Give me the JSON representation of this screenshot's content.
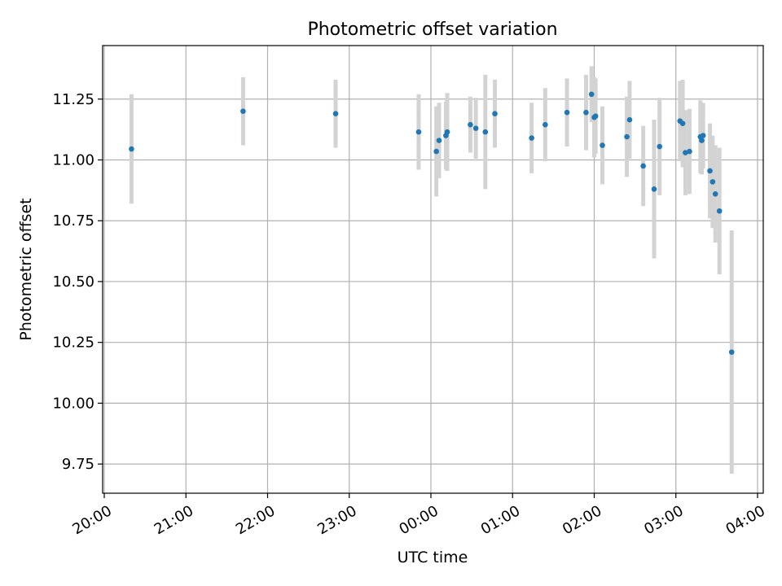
{
  "chart_data": {
    "type": "scatter",
    "title": "Photometric offset variation",
    "xlabel": "UTC time",
    "ylabel": "Photometric offset",
    "x_ticks": [
      "20:00",
      "21:00",
      "22:00",
      "23:00",
      "00:00",
      "01:00",
      "02:00",
      "03:00",
      "04:00"
    ],
    "y_ticks": [
      "9.75",
      "10.00",
      "10.25",
      "10.50",
      "10.75",
      "11.00",
      "11.25"
    ],
    "xlim_hours": [
      19.98,
      28.07
    ],
    "ylim": [
      9.63,
      11.47
    ],
    "grid": true,
    "colors": {
      "point": "#1f77b4",
      "errorbar": "#d3d3d3",
      "grid": "#b0b0b0"
    },
    "points": [
      {
        "t": "20:20",
        "y": 11.045,
        "err": 0.225
      },
      {
        "t": "21:42",
        "y": 11.2,
        "err": 0.14
      },
      {
        "t": "22:50",
        "y": 11.19,
        "err": 0.14
      },
      {
        "t": "23:51",
        "y": 11.115,
        "err": 0.155
      },
      {
        "t": "00:04",
        "y": 11.035,
        "err": 0.185
      },
      {
        "t": "00:06",
        "y": 11.08,
        "err": 0.155
      },
      {
        "t": "00:11",
        "y": 11.1,
        "err": 0.14
      },
      {
        "t": "00:12",
        "y": 11.115,
        "err": 0.16
      },
      {
        "t": "00:29",
        "y": 11.145,
        "err": 0.115
      },
      {
        "t": "00:33",
        "y": 11.13,
        "err": 0.125
      },
      {
        "t": "00:40",
        "y": 11.115,
        "err": 0.235
      },
      {
        "t": "00:47",
        "y": 11.19,
        "err": 0.14
      },
      {
        "t": "01:14",
        "y": 11.09,
        "err": 0.145
      },
      {
        "t": "01:24",
        "y": 11.145,
        "err": 0.15
      },
      {
        "t": "01:40",
        "y": 11.195,
        "err": 0.14
      },
      {
        "t": "01:54",
        "y": 11.195,
        "err": 0.155
      },
      {
        "t": "01:58",
        "y": 11.27,
        "err": 0.115
      },
      {
        "t": "02:00",
        "y": 11.175,
        "err": 0.165
      },
      {
        "t": "02:01",
        "y": 11.18,
        "err": 0.155
      },
      {
        "t": "02:06",
        "y": 11.06,
        "err": 0.16
      },
      {
        "t": "02:24",
        "y": 11.095,
        "err": 0.165
      },
      {
        "t": "02:26",
        "y": 11.165,
        "err": 0.16
      },
      {
        "t": "02:36",
        "y": 10.975,
        "err": 0.165
      },
      {
        "t": "02:44",
        "y": 10.88,
        "err": 0.285
      },
      {
        "t": "02:48",
        "y": 11.055,
        "err": 0.2
      },
      {
        "t": "03:03",
        "y": 11.16,
        "err": 0.165
      },
      {
        "t": "03:05",
        "y": 11.15,
        "err": 0.18
      },
      {
        "t": "03:07",
        "y": 11.03,
        "err": 0.175
      },
      {
        "t": "03:10",
        "y": 11.035,
        "err": 0.175
      },
      {
        "t": "03:18",
        "y": 11.095,
        "err": 0.15
      },
      {
        "t": "03:19",
        "y": 11.08,
        "err": 0.14
      },
      {
        "t": "03:20",
        "y": 11.1,
        "err": 0.135
      },
      {
        "t": "03:25",
        "y": 10.955,
        "err": 0.195
      },
      {
        "t": "03:27",
        "y": 10.91,
        "err": 0.19
      },
      {
        "t": "03:29",
        "y": 10.86,
        "err": 0.2
      },
      {
        "t": "03:32",
        "y": 10.79,
        "err": 0.26
      },
      {
        "t": "03:41",
        "y": 10.21,
        "err": 0.5
      }
    ]
  }
}
